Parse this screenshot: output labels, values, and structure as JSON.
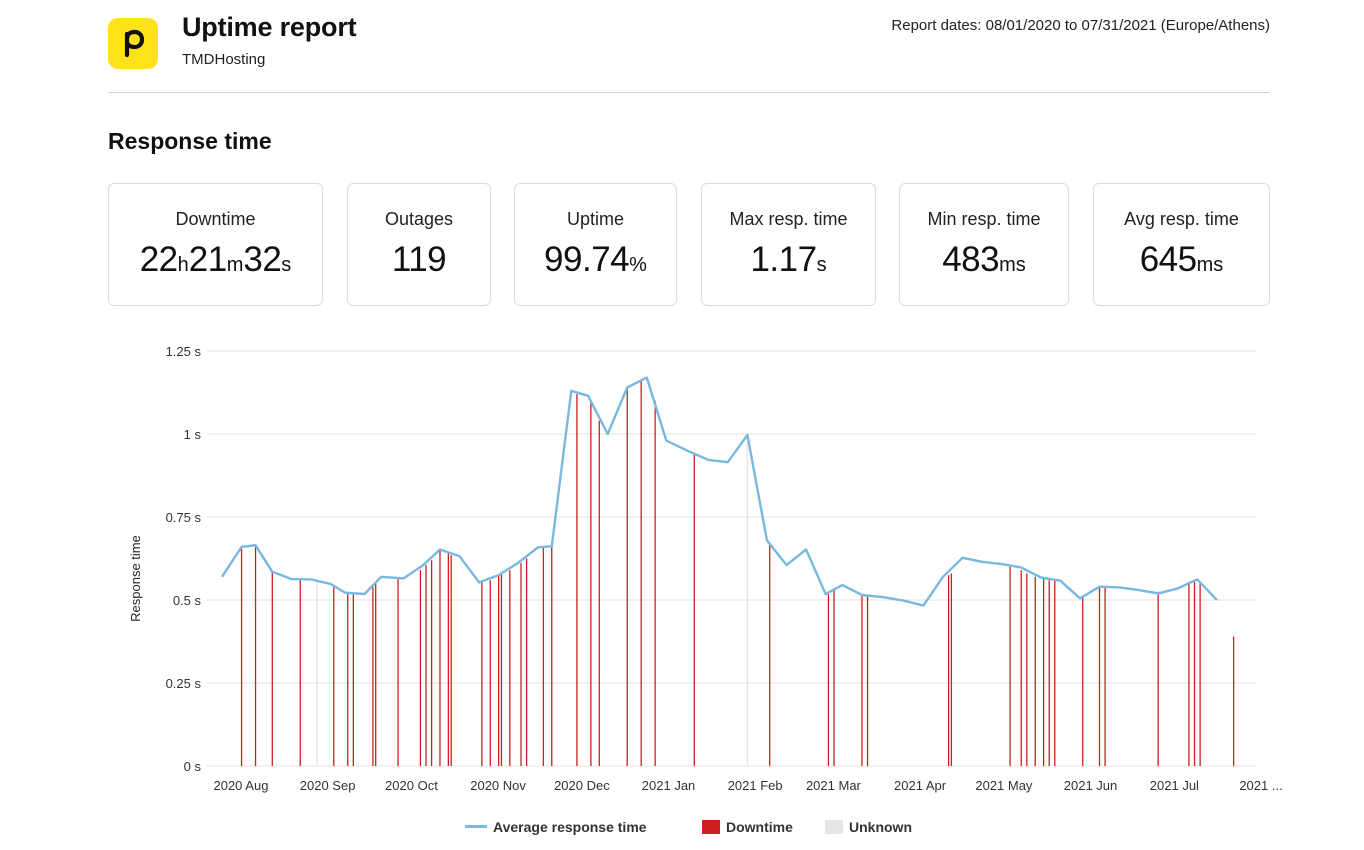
{
  "header": {
    "title": "Uptime report",
    "subtitle": "TMDHosting",
    "report_dates": "Report dates: 08/01/2020 to 07/31/2021 (Europe/Athens)",
    "logo_icon": "pingdom-p-logo-icon",
    "logo_color": "#ffe21a"
  },
  "section_title": "Response time",
  "stats": [
    {
      "label": "Downtime",
      "parts": [
        {
          "v": "22",
          "u": "h"
        },
        {
          "v": "21",
          "u": "m"
        },
        {
          "v": "32",
          "u": "s"
        }
      ]
    },
    {
      "label": "Outages",
      "parts": [
        {
          "v": "119",
          "u": ""
        }
      ]
    },
    {
      "label": "Uptime",
      "parts": [
        {
          "v": "99.74",
          "u": "%"
        }
      ]
    },
    {
      "label": "Max resp. time",
      "parts": [
        {
          "v": "1.17",
          "u": "s"
        }
      ]
    },
    {
      "label": "Min resp. time",
      "parts": [
        {
          "v": "483",
          "u": "ms"
        }
      ]
    },
    {
      "label": "Avg resp. time",
      "parts": [
        {
          "v": "645",
          "u": "ms"
        }
      ]
    }
  ],
  "chart_data": {
    "type": "line",
    "ylabel": "Response time",
    "ylim": [
      0,
      1.25
    ],
    "yticks": [
      0,
      0.25,
      0.5,
      0.75,
      1,
      1.25
    ],
    "ytick_labels": [
      "0 s",
      "0.25 s",
      "0.5 s",
      "0.75 s",
      "1 s",
      "1.25 s"
    ],
    "xlim": [
      "2020-07-27",
      "2021-08-01"
    ],
    "xticks": [
      {
        "date": "2020-08-01",
        "label": "2020 Aug"
      },
      {
        "date": "2020-09-01",
        "label": "2020 Sep"
      },
      {
        "date": "2020-10-01",
        "label": "2020 Oct"
      },
      {
        "date": "2020-11-01",
        "label": "2020 Nov"
      },
      {
        "date": "2020-12-01",
        "label": "2020 Dec"
      },
      {
        "date": "2021-01-01",
        "label": "2021 Jan"
      },
      {
        "date": "2021-02-01",
        "label": "2021 Feb"
      },
      {
        "date": "2021-03-01",
        "label": "2021 Mar"
      },
      {
        "date": "2021-04-01",
        "label": "2021 Apr"
      },
      {
        "date": "2021-05-01",
        "label": "2021 May"
      },
      {
        "date": "2021-06-01",
        "label": "2021 Jun"
      },
      {
        "date": "2021-07-01",
        "label": "2021 Jul"
      },
      {
        "date": "2021-08-01",
        "label": "2021 ..."
      }
    ],
    "grid": true,
    "legend_position": "bottom",
    "colors": {
      "line": "#7ab8e0",
      "downtime": "#cc1f1f",
      "unknown": "#e6e6e6",
      "grid": "#e3e3e3"
    },
    "series": [
      {
        "name": "Average response time",
        "points": [
          [
            "2020-07-27",
            0.57
          ],
          [
            "2020-08-03",
            0.66
          ],
          [
            "2020-08-08",
            0.665
          ],
          [
            "2020-08-14",
            0.585
          ],
          [
            "2020-08-21",
            0.563
          ],
          [
            "2020-08-28",
            0.562
          ],
          [
            "2020-09-04",
            0.548
          ],
          [
            "2020-09-09",
            0.522
          ],
          [
            "2020-09-16",
            0.518
          ],
          [
            "2020-09-22",
            0.57
          ],
          [
            "2020-09-30",
            0.565
          ],
          [
            "2020-10-07",
            0.605
          ],
          [
            "2020-10-13",
            0.652
          ],
          [
            "2020-10-20",
            0.632
          ],
          [
            "2020-10-27",
            0.553
          ],
          [
            "2020-11-03",
            0.575
          ],
          [
            "2020-11-10",
            0.612
          ],
          [
            "2020-11-17",
            0.658
          ],
          [
            "2020-11-22",
            0.662
          ],
          [
            "2020-11-29",
            1.13
          ],
          [
            "2020-12-05",
            1.115
          ],
          [
            "2020-12-12",
            1.0
          ],
          [
            "2020-12-19",
            1.14
          ],
          [
            "2020-12-26",
            1.17
          ],
          [
            "2021-01-02",
            0.98
          ],
          [
            "2021-01-10",
            0.948
          ],
          [
            "2021-01-17",
            0.922
          ],
          [
            "2021-01-24",
            0.915
          ],
          [
            "2021-01-31",
            0.997
          ],
          [
            "2021-02-07",
            0.68
          ],
          [
            "2021-02-14",
            0.605
          ],
          [
            "2021-02-21",
            0.652
          ],
          [
            "2021-02-28",
            0.518
          ],
          [
            "2021-03-06",
            0.545
          ],
          [
            "2021-03-13",
            0.515
          ],
          [
            "2021-03-21",
            0.508
          ],
          [
            "2021-03-28",
            0.498
          ],
          [
            "2021-04-04",
            0.483
          ],
          [
            "2021-04-11",
            0.57
          ],
          [
            "2021-04-18",
            0.627
          ],
          [
            "2021-04-25",
            0.615
          ],
          [
            "2021-05-02",
            0.608
          ],
          [
            "2021-05-09",
            0.598
          ],
          [
            "2021-05-16",
            0.568
          ],
          [
            "2021-05-23",
            0.558
          ],
          [
            "2021-05-30",
            0.505
          ],
          [
            "2021-06-06",
            0.54
          ],
          [
            "2021-06-13",
            0.538
          ],
          [
            "2021-06-20",
            0.53
          ],
          [
            "2021-06-27",
            0.52
          ],
          [
            "2021-07-04",
            0.535
          ],
          [
            "2021-07-11",
            0.562
          ],
          [
            "2021-07-18",
            0.5
          ]
        ]
      },
      {
        "name": "Downtime",
        "events": [
          [
            "2020-08-03",
            0.66
          ],
          [
            "2020-08-08",
            0.665
          ],
          [
            "2020-08-14",
            0.585
          ],
          [
            "2020-08-24",
            0.562
          ],
          [
            "2020-09-05",
            0.54
          ],
          [
            "2020-09-10",
            0.52
          ],
          [
            "2020-09-12",
            0.52
          ],
          [
            "2020-09-19",
            0.54
          ],
          [
            "2020-09-20",
            0.55
          ],
          [
            "2020-09-28",
            0.565
          ],
          [
            "2020-10-06",
            0.59
          ],
          [
            "2020-10-08",
            0.605
          ],
          [
            "2020-10-10",
            0.62
          ],
          [
            "2020-10-13",
            0.652
          ],
          [
            "2020-10-16",
            0.64
          ],
          [
            "2020-10-17",
            0.635
          ],
          [
            "2020-10-28",
            0.553
          ],
          [
            "2020-10-31",
            0.56
          ],
          [
            "2020-11-03",
            0.575
          ],
          [
            "2020-11-04",
            0.58
          ],
          [
            "2020-11-07",
            0.59
          ],
          [
            "2020-11-11",
            0.612
          ],
          [
            "2020-11-13",
            0.625
          ],
          [
            "2020-11-19",
            0.658
          ],
          [
            "2020-11-22",
            0.662
          ],
          [
            "2020-12-01",
            1.12
          ],
          [
            "2020-12-06",
            1.1
          ],
          [
            "2020-12-09",
            1.04
          ],
          [
            "2020-12-19",
            1.14
          ],
          [
            "2020-12-24",
            1.16
          ],
          [
            "2020-12-29",
            1.1
          ],
          [
            "2021-01-12",
            0.94
          ],
          [
            "2021-02-08",
            0.67
          ],
          [
            "2021-02-29",
            0.518
          ],
          [
            "2021-03-03",
            0.53
          ],
          [
            "2021-03-13",
            0.515
          ],
          [
            "2021-03-15",
            0.512
          ],
          [
            "2021-04-13",
            0.575
          ],
          [
            "2021-04-14",
            0.58
          ],
          [
            "2021-05-05",
            0.6
          ],
          [
            "2021-05-09",
            0.59
          ],
          [
            "2021-05-11",
            0.58
          ],
          [
            "2021-05-14",
            0.57
          ],
          [
            "2021-05-17",
            0.565
          ],
          [
            "2021-05-19",
            0.56
          ],
          [
            "2021-05-21",
            0.558
          ],
          [
            "2021-05-31",
            0.51
          ],
          [
            "2021-06-06",
            0.54
          ],
          [
            "2021-06-08",
            0.54
          ],
          [
            "2021-06-27",
            0.525
          ],
          [
            "2021-07-08",
            0.555
          ],
          [
            "2021-07-10",
            0.56
          ],
          [
            "2021-07-12",
            0.555
          ],
          [
            "2021-07-24",
            0.39
          ]
        ]
      },
      {
        "name": "Unknown",
        "events": [
          [
            "2020-08-30",
            0.562
          ],
          [
            "2021-01-31",
            0.997
          ]
        ]
      }
    ]
  }
}
